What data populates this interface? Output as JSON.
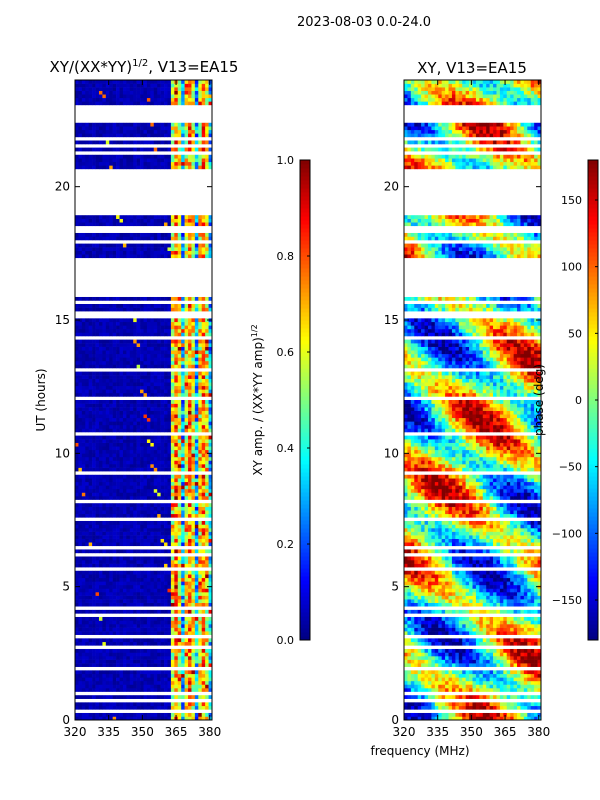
{
  "figure": {
    "suptitle": "2023-08-03 0.0-24.0",
    "shared_xlabel": "frequency (MHz)",
    "shared_ylabel": "UT (hours)"
  },
  "colors": {
    "jet": [
      "#00007f",
      "#0000ff",
      "#007fff",
      "#00ffff",
      "#7fff7f",
      "#ffff00",
      "#ff7f00",
      "#ff0000",
      "#7f0000"
    ],
    "flag": "#ffffff"
  },
  "chart_data": [
    {
      "type": "heatmap",
      "title_main": "XY/(XX*YY)",
      "title_sup": "1/2",
      "title_tail": ", V13=EA15",
      "x_range": [
        320,
        381
      ],
      "y_range": [
        0,
        24
      ],
      "x_ticks": [
        {
          "v": 320,
          "label": "320"
        },
        {
          "v": 335,
          "label": "335"
        },
        {
          "v": 350,
          "label": "350"
        },
        {
          "v": 365,
          "label": "365"
        },
        {
          "v": 380,
          "label": "380"
        }
      ],
      "y_ticks": [
        {
          "v": 0,
          "label": "0"
        },
        {
          "v": 5,
          "label": "5"
        },
        {
          "v": 10,
          "label": "10"
        },
        {
          "v": 15,
          "label": "15"
        },
        {
          "v": 20,
          "label": "20"
        }
      ],
      "flagged_ut_bands": [
        [
          17.0,
          17.3
        ],
        [
          15.9,
          17.0
        ],
        [
          19.0,
          20.6
        ],
        [
          22.6,
          23.1
        ],
        [
          0.65,
          0.8
        ],
        [
          0.95,
          1.1
        ]
      ],
      "colorbar": {
        "label_main": "XY amp. / (XX*YY amp)",
        "label_sup": "1/2",
        "range": [
          0.0,
          1.0
        ],
        "ticks": [
          {
            "v": 0.0,
            "label": "0.0"
          },
          {
            "v": 0.2,
            "label": "0.2"
          },
          {
            "v": 0.4,
            "label": "0.4"
          },
          {
            "v": 0.6,
            "label": "0.6"
          },
          {
            "v": 0.8,
            "label": "0.8"
          },
          {
            "v": 1.0,
            "label": "1.0"
          }
        ]
      }
    },
    {
      "type": "heatmap",
      "title_main": "XY, V13=EA15",
      "x_range": [
        320,
        381
      ],
      "y_range": [
        0,
        24
      ],
      "x_ticks": [
        {
          "v": 320,
          "label": "320"
        },
        {
          "v": 335,
          "label": "335"
        },
        {
          "v": 350,
          "label": "350"
        },
        {
          "v": 365,
          "label": "365"
        },
        {
          "v": 380,
          "label": "380"
        }
      ],
      "y_ticks": [
        {
          "v": 0,
          "label": "0"
        },
        {
          "v": 5,
          "label": "5"
        },
        {
          "v": 10,
          "label": "10"
        },
        {
          "v": 15,
          "label": "15"
        },
        {
          "v": 20,
          "label": "20"
        }
      ],
      "flagged_ut_bands": [
        [
          17.0,
          17.3
        ],
        [
          15.9,
          17.0
        ],
        [
          19.0,
          20.6
        ],
        [
          22.6,
          23.1
        ],
        [
          0.65,
          0.8
        ],
        [
          0.95,
          1.1
        ]
      ],
      "colorbar": {
        "label_main": "phase (deg)",
        "range": [
          -180,
          180
        ],
        "ticks": [
          {
            "v": -150,
            "label": "−150"
          },
          {
            "v": -100,
            "label": "−100"
          },
          {
            "v": -50,
            "label": "−50"
          },
          {
            "v": 0,
            "label": "0"
          },
          {
            "v": 50,
            "label": "50"
          },
          {
            "v": 100,
            "label": "100"
          },
          {
            "v": 150,
            "label": "150"
          }
        ]
      }
    }
  ]
}
